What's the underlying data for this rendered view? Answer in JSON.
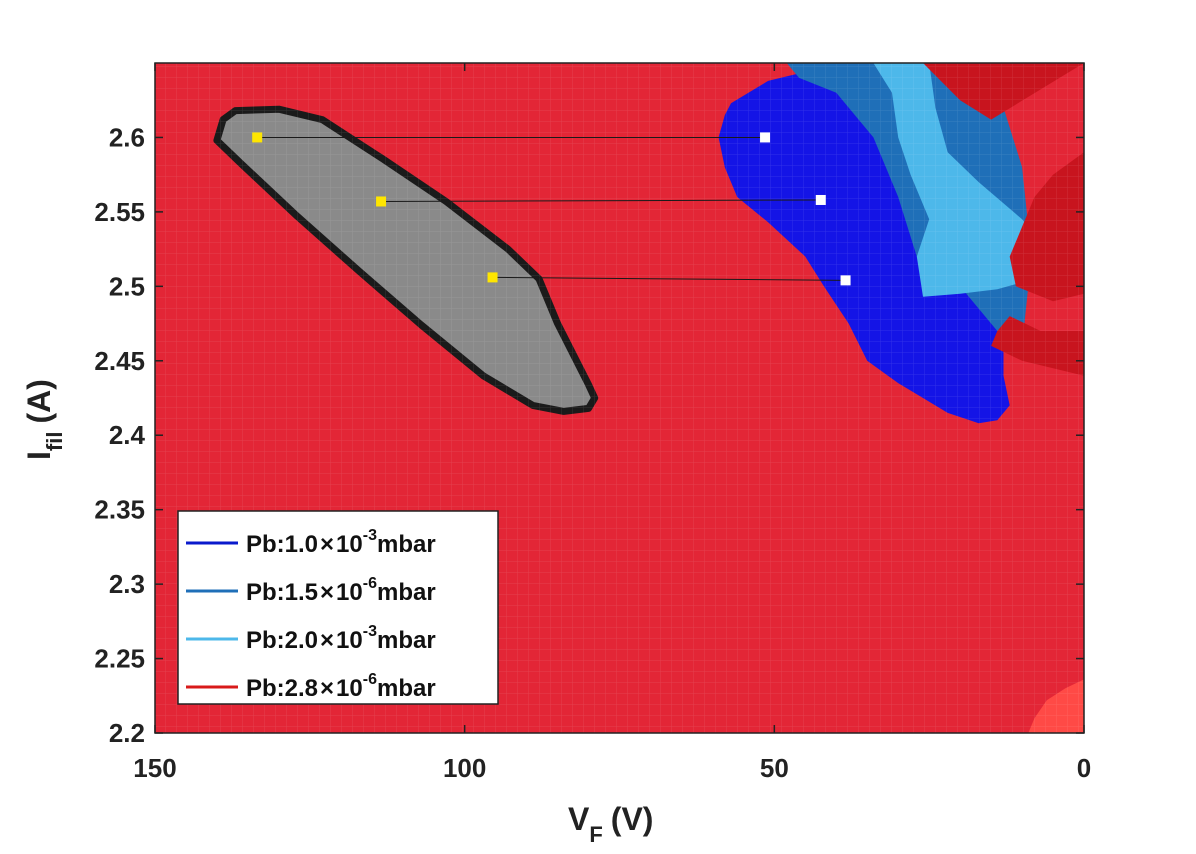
{
  "chart_data": {
    "type": "heatmap",
    "xlabel": "V",
    "xlabel_sub": "F",
    "xlabel_unit": "(V)",
    "ylabel": "I",
    "ylabel_sub": "fil",
    "ylabel_unit": "(A)",
    "xlim": [
      150,
      0
    ],
    "ylim": [
      2.2,
      2.65
    ],
    "x_ticks": [
      150,
      100,
      50,
      0
    ],
    "x_tick_labels": [
      "150",
      "100",
      "50",
      "0"
    ],
    "y_ticks": [
      2.2,
      2.25,
      2.3,
      2.35,
      2.4,
      2.45,
      2.5,
      2.55,
      2.6
    ],
    "y_tick_labels": [
      "2.2",
      "2.25",
      "2.3",
      "2.35",
      "2.4",
      "2.45",
      "2.5",
      "2.55",
      "2.6"
    ],
    "background_color": "#e32636",
    "legend_position": "bottom-left",
    "legend": [
      {
        "prefix": "Pb:1.0",
        "times": "×",
        "base": "10",
        "exp": "-3",
        "unit": "mbar",
        "color": "#0a1acc"
      },
      {
        "prefix": "Pb:1.5",
        "times": "×",
        "base": "10",
        "exp": "-6",
        "unit": "mbar",
        "color": "#1f6fb8"
      },
      {
        "prefix": "Pb:2.0",
        "times": "×",
        "base": "10",
        "exp": "-3",
        "unit": "mbar",
        "color": "#4db8ea"
      },
      {
        "prefix": "Pb:2.8",
        "times": "×",
        "base": "10",
        "exp": "-6",
        "unit": "mbar",
        "color": "#d81a1a"
      }
    ],
    "regions": [
      {
        "name": "gray-region",
        "fill": "#8a8a8a",
        "stroke": "#1a1a1a",
        "points": [
          [
            137,
            2.618
          ],
          [
            130,
            2.619
          ],
          [
            123,
            2.612
          ],
          [
            113,
            2.585
          ],
          [
            103,
            2.557
          ],
          [
            93,
            2.525
          ],
          [
            88,
            2.505
          ],
          [
            85,
            2.475
          ],
          [
            80,
            2.434
          ],
          [
            79,
            2.425
          ],
          [
            80,
            2.418
          ],
          [
            84,
            2.416
          ],
          [
            89,
            2.42
          ],
          [
            97,
            2.44
          ],
          [
            107,
            2.474
          ],
          [
            117,
            2.51
          ],
          [
            127,
            2.547
          ],
          [
            136,
            2.582
          ],
          [
            140,
            2.598
          ],
          [
            139,
            2.612
          ]
        ]
      },
      {
        "name": "blue-region-1e-3",
        "fill": "#1414e6",
        "points": [
          [
            57,
            2.623
          ],
          [
            51,
            2.638
          ],
          [
            44,
            2.645
          ],
          [
            37,
            2.645
          ],
          [
            30,
            2.625
          ],
          [
            25,
            2.6
          ],
          [
            18,
            2.56
          ],
          [
            13,
            2.513
          ],
          [
            12,
            2.48
          ],
          [
            13,
            2.46
          ],
          [
            13,
            2.44
          ],
          [
            12,
            2.42
          ],
          [
            14,
            2.41
          ],
          [
            17,
            2.408
          ],
          [
            22,
            2.415
          ],
          [
            26,
            2.425
          ],
          [
            30,
            2.435
          ],
          [
            35,
            2.45
          ],
          [
            38,
            2.475
          ],
          [
            42,
            2.5
          ],
          [
            45,
            2.52
          ],
          [
            51,
            2.543
          ],
          [
            56,
            2.56
          ],
          [
            58,
            2.58
          ],
          [
            59,
            2.6
          ],
          [
            58,
            2.615
          ]
        ]
      },
      {
        "name": "blue-region-1.5e-6",
        "fill": "#1f6fb8",
        "points": [
          [
            48,
            2.65
          ],
          [
            18,
            2.65
          ],
          [
            13,
            2.62
          ],
          [
            10,
            2.58
          ],
          [
            9,
            2.54
          ],
          [
            9,
            2.5
          ],
          [
            10,
            2.46
          ],
          [
            14,
            2.47
          ],
          [
            20,
            2.5
          ],
          [
            27,
            2.52
          ],
          [
            30,
            2.56
          ],
          [
            34,
            2.6
          ],
          [
            40,
            2.63
          ],
          [
            46,
            2.64
          ]
        ]
      },
      {
        "name": "lightblue-region-2e-3",
        "fill": "#4db8ea",
        "points": [
          [
            34,
            2.65
          ],
          [
            25,
            2.65
          ],
          [
            24,
            2.62
          ],
          [
            22,
            2.59
          ],
          [
            17,
            2.57
          ],
          [
            10,
            2.545
          ],
          [
            6,
            2.525
          ],
          [
            8,
            2.505
          ],
          [
            14,
            2.498
          ],
          [
            20,
            2.495
          ],
          [
            26,
            2.493
          ],
          [
            27,
            2.52
          ],
          [
            25,
            2.545
          ],
          [
            28,
            2.575
          ],
          [
            30,
            2.6
          ],
          [
            31,
            2.63
          ]
        ]
      },
      {
        "name": "darkred-corner-top-right",
        "fill": "#c8141e",
        "points": [
          [
            26,
            2.65
          ],
          [
            0,
            2.65
          ],
          [
            0,
            2.59
          ],
          [
            5,
            2.575
          ],
          [
            8,
            2.56
          ],
          [
            10,
            2.54
          ],
          [
            12,
            2.52
          ],
          [
            11,
            2.5
          ],
          [
            5,
            2.49
          ],
          [
            0,
            2.495
          ],
          [
            0,
            2.47
          ],
          [
            7,
            2.47
          ],
          [
            12,
            2.48
          ],
          [
            14,
            2.47
          ],
          [
            15,
            2.46
          ],
          [
            10,
            2.45
          ],
          [
            0,
            2.44
          ],
          [
            0,
            2.65
          ],
          [
            15,
            2.612
          ],
          [
            20,
            2.625
          ]
        ]
      },
      {
        "name": "bright-red-corner-bottom-right",
        "fill": "#ff4a46",
        "points": [
          [
            9,
            2.2
          ],
          [
            0,
            2.2
          ],
          [
            0,
            2.236
          ],
          [
            3,
            2.23
          ],
          [
            6,
            2.222
          ],
          [
            8,
            2.21
          ]
        ]
      }
    ],
    "markers": [
      {
        "x": 133.5,
        "y": 2.6,
        "color": "#ffe600"
      },
      {
        "x": 113.5,
        "y": 2.557,
        "color": "#ffe600"
      },
      {
        "x": 95.5,
        "y": 2.506,
        "color": "#ffe600"
      },
      {
        "x": 51.5,
        "y": 2.6,
        "color": "#ffffff"
      },
      {
        "x": 42.5,
        "y": 2.558,
        "color": "#ffffff"
      },
      {
        "x": 38.5,
        "y": 2.504,
        "color": "#ffffff"
      }
    ],
    "connectors": [
      {
        "from": [
          133.5,
          2.6
        ],
        "to": [
          51.5,
          2.6
        ]
      },
      {
        "from": [
          113.5,
          2.557
        ],
        "to": [
          42.5,
          2.558
        ]
      },
      {
        "from": [
          95.5,
          2.506
        ],
        "to": [
          38.5,
          2.504
        ]
      }
    ]
  }
}
